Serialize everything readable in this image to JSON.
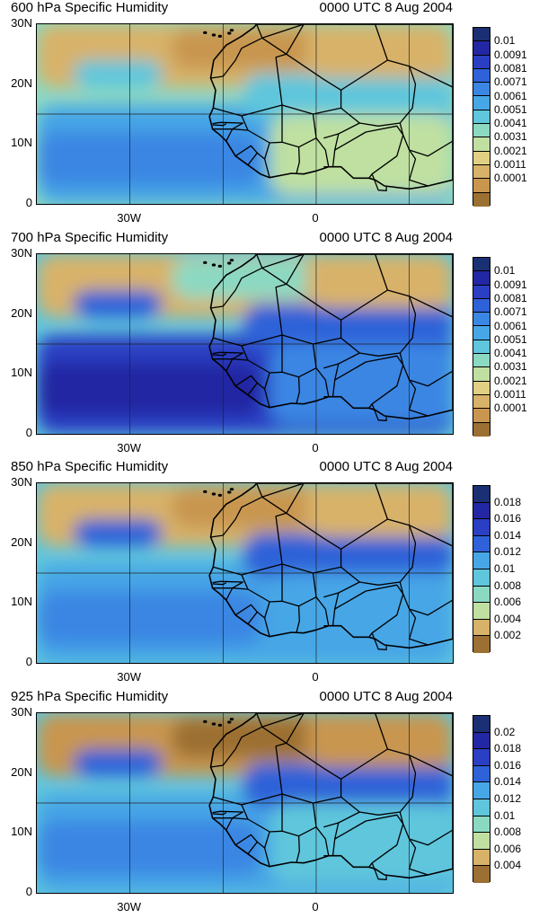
{
  "panels": [
    {
      "title": "600 hPa Specific Humidity",
      "time": "0000 UTC 8 Aug 2004",
      "lat_labels": [
        "30N",
        "20N",
        "10N",
        "0"
      ],
      "lon_labels": [
        "30W",
        "0"
      ],
      "levels": [
        "0.01",
        "0.0091",
        "0.0081",
        "0.0071",
        "0.0061",
        "0.0051",
        "0.0041",
        "0.0031",
        "0.0021",
        "0.0011",
        "0.0001"
      ],
      "colors": [
        "#1b2f75",
        "#2327a3",
        "#2a3fc4",
        "#2f62d8",
        "#3b86e3",
        "#47a6e6",
        "#5fc6dc",
        "#8cd9c2",
        "#bfe0a1",
        "#e1cf84",
        "#d8b269",
        "#c8964f",
        "#9c7033"
      ],
      "dominant": [
        "#d8b269",
        "#c8964f",
        "#8cd9c2",
        "#47a6e6",
        "#3b86e3",
        "#5fc6dc",
        "#bfe0a1"
      ]
    },
    {
      "title": "700 hPa Specific Humidity",
      "time": "0000 UTC 8 Aug 2004",
      "lat_labels": [
        "30N",
        "20N",
        "10N",
        "0"
      ],
      "lon_labels": [
        "30W",
        "0"
      ],
      "levels": [
        "0.01",
        "0.0091",
        "0.0081",
        "0.0071",
        "0.0061",
        "0.0051",
        "0.0041",
        "0.0031",
        "0.0021",
        "0.0011",
        "0.0001"
      ],
      "colors": [
        "#1b2f75",
        "#2327a3",
        "#2a3fc4",
        "#2f62d8",
        "#3b86e3",
        "#47a6e6",
        "#5fc6dc",
        "#8cd9c2",
        "#bfe0a1",
        "#e1cf84",
        "#d8b269",
        "#c8964f",
        "#9c7033"
      ],
      "dominant": [
        "#d8b269",
        "#8cd9c2",
        "#5fc6dc",
        "#2a3fc4",
        "#2327a3",
        "#2f62d8",
        "#3b86e3"
      ]
    },
    {
      "title": "850 hPa Specific Humidity",
      "time": "0000 UTC 8 Aug 2004",
      "lat_labels": [
        "30N",
        "20N",
        "10N",
        "0"
      ],
      "lon_labels": [
        "30W",
        "0"
      ],
      "levels": [
        "0.018",
        "0.016",
        "0.014",
        "0.012",
        "0.01",
        "0.008",
        "0.006",
        "0.004",
        "0.002"
      ],
      "colors": [
        "#1b2f75",
        "#2327a3",
        "#2a3fc4",
        "#2f62d8",
        "#47a6e6",
        "#5fc6dc",
        "#8cd9c2",
        "#bfe0a1",
        "#d8b269",
        "#9c7033"
      ],
      "dominant": [
        "#d8b269",
        "#c8964f",
        "#5fc6dc",
        "#47a6e6",
        "#3b86e3",
        "#2f62d8",
        "#47a6e6"
      ]
    },
    {
      "title": "925 hPa Specific Humidity",
      "time": "0000 UTC 8 Aug 2004",
      "lat_labels": [
        "30N",
        "20N",
        "10N",
        "0"
      ],
      "lon_labels": [
        "30W",
        "0"
      ],
      "levels": [
        "0.02",
        "0.018",
        "0.016",
        "0.014",
        "0.012",
        "0.01",
        "0.008",
        "0.006",
        "0.004"
      ],
      "colors": [
        "#1b2f75",
        "#2327a3",
        "#2a3fc4",
        "#2f62d8",
        "#47a6e6",
        "#5fc6dc",
        "#8cd9c2",
        "#bfe0a1",
        "#d8b269",
        "#9c7033"
      ],
      "dominant": [
        "#c8964f",
        "#9c7033",
        "#5fc6dc",
        "#47a6e6",
        "#3b86e3",
        "#2f62d8",
        "#5fc6dc"
      ]
    }
  ]
}
